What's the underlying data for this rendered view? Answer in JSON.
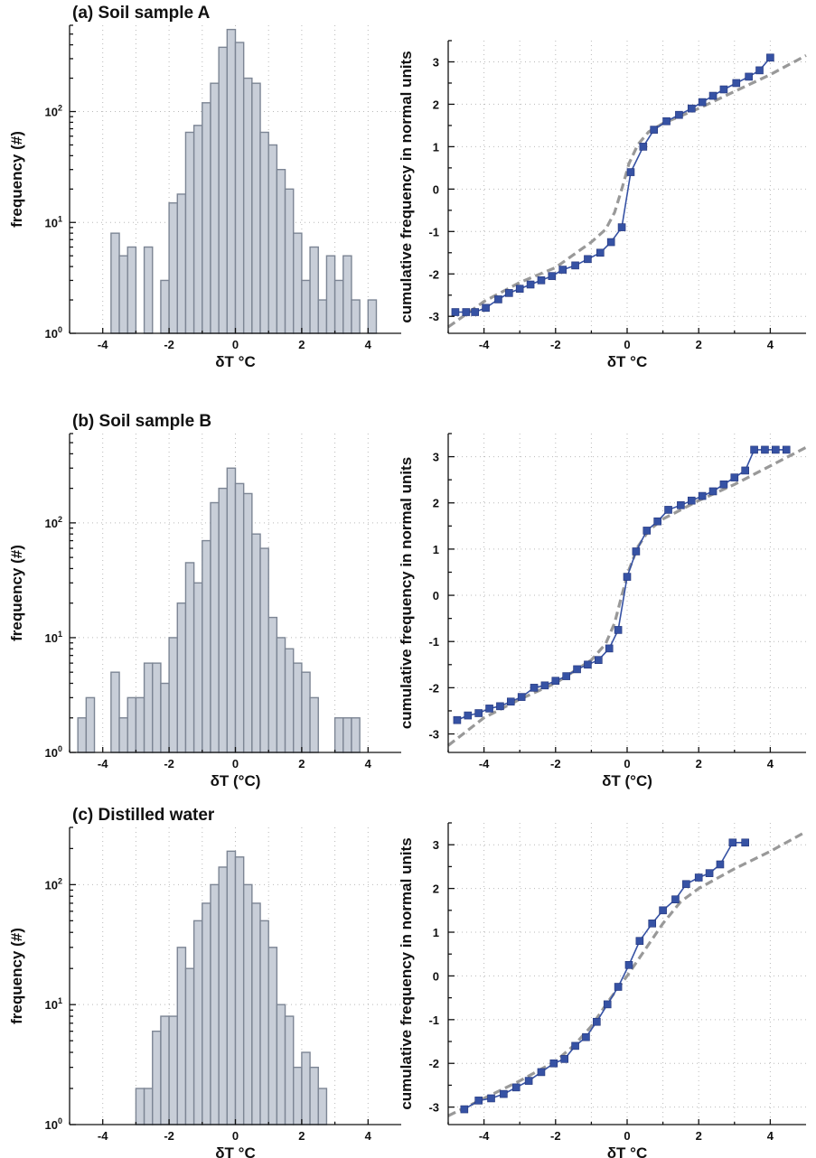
{
  "chart_data": [
    {
      "type": "bar",
      "title": "(a) Soil sample A",
      "xlabel": "δT °C",
      "ylabel": "frequency (#)",
      "yscale": "log",
      "xlim": [
        -5,
        5
      ],
      "ylim": [
        1,
        600
      ],
      "xticks": [
        "-4",
        "-2",
        "0",
        "2",
        "4"
      ],
      "yticks": [
        {
          "base": "10",
          "exp": "0"
        },
        {
          "base": "10",
          "exp": "1"
        },
        {
          "base": "10",
          "exp": "2"
        }
      ],
      "grid": true,
      "bins": [
        [
          -3.75,
          -3.5
        ],
        [
          -3.5,
          -3.25
        ],
        [
          -3.25,
          -3.0
        ],
        [
          -3.0,
          -2.75
        ],
        [
          -2.75,
          -2.5
        ],
        [
          -2.5,
          -2.25
        ],
        [
          -2.25,
          -2.0
        ],
        [
          -2.0,
          -1.75
        ],
        [
          -1.75,
          -1.5
        ],
        [
          -1.5,
          -1.25
        ],
        [
          -1.25,
          -1.0
        ],
        [
          -1.0,
          -0.75
        ],
        [
          -0.75,
          -0.5
        ],
        [
          -0.5,
          -0.25
        ],
        [
          -0.25,
          0.0
        ],
        [
          0.0,
          0.25
        ],
        [
          0.25,
          0.5
        ],
        [
          0.5,
          0.75
        ],
        [
          0.75,
          1.0
        ],
        [
          1.0,
          1.25
        ],
        [
          1.25,
          1.5
        ],
        [
          1.5,
          1.75
        ],
        [
          1.75,
          2.0
        ],
        [
          2.0,
          2.25
        ],
        [
          2.25,
          2.5
        ],
        [
          2.5,
          2.75
        ],
        [
          2.75,
          3.0
        ],
        [
          3.0,
          3.25
        ],
        [
          3.25,
          3.5
        ],
        [
          3.5,
          3.75
        ],
        [
          4.0,
          4.25
        ]
      ],
      "values": [
        8,
        5,
        6,
        0,
        6,
        0,
        3,
        15,
        18,
        65,
        75,
        120,
        180,
        380,
        550,
        420,
        200,
        180,
        65,
        50,
        30,
        20,
        8,
        3,
        6,
        2,
        5,
        3,
        5,
        2,
        2
      ]
    },
    {
      "type": "line",
      "xlabel": "δT °C",
      "ylabel": "cumulative frequency in normal units",
      "xlim": [
        -5,
        5
      ],
      "ylim": [
        -3.4,
        3.5
      ],
      "xticks": [
        "-4",
        "-2",
        "0",
        "2",
        "4"
      ],
      "yticks": [
        "-3",
        "-2",
        "-1",
        "0",
        "1",
        "2",
        "3"
      ],
      "grid": true,
      "x": [
        -4.8,
        -4.5,
        -4.25,
        -3.95,
        -3.6,
        -3.3,
        -3.0,
        -2.7,
        -2.4,
        -2.1,
        -1.8,
        -1.45,
        -1.1,
        -0.75,
        -0.45,
        -0.15,
        0.1,
        0.45,
        0.75,
        1.1,
        1.45,
        1.8,
        2.1,
        2.4,
        2.7,
        3.05,
        3.4,
        3.7,
        4.0
      ],
      "y": [
        -2.9,
        -2.9,
        -2.9,
        -2.8,
        -2.6,
        -2.45,
        -2.35,
        -2.25,
        -2.15,
        -2.05,
        -1.9,
        -1.8,
        -1.65,
        -1.5,
        -1.25,
        -0.9,
        0.4,
        1.0,
        1.4,
        1.6,
        1.75,
        1.9,
        2.05,
        2.2,
        2.35,
        2.5,
        2.65,
        2.8,
        3.1
      ],
      "fit": [
        [
          -5,
          -3.25
        ],
        [
          -4,
          -2.65
        ],
        [
          -3,
          -2.2
        ],
        [
          -2,
          -1.85
        ],
        [
          -1.5,
          -1.55
        ],
        [
          -1,
          -1.25
        ],
        [
          -0.6,
          -0.95
        ],
        [
          -0.35,
          -0.55
        ],
        [
          -0.15,
          0
        ],
        [
          0.05,
          0.6
        ],
        [
          0.3,
          1.05
        ],
        [
          0.6,
          1.35
        ],
        [
          1,
          1.55
        ],
        [
          2,
          1.9
        ],
        [
          3,
          2.3
        ],
        [
          4,
          2.7
        ],
        [
          5,
          3.15
        ]
      ]
    },
    {
      "type": "bar",
      "title": "(b) Soil sample B",
      "xlabel": "δT (°C)",
      "ylabel": "frequency (#)",
      "yscale": "log",
      "xlim": [
        -5,
        5
      ],
      "ylim": [
        1,
        600
      ],
      "xticks": [
        "-4",
        "-2",
        "0",
        "2",
        "4"
      ],
      "yticks": [
        {
          "base": "10",
          "exp": "0"
        },
        {
          "base": "10",
          "exp": "1"
        },
        {
          "base": "10",
          "exp": "2"
        }
      ],
      "grid": true,
      "bins": [
        [
          -4.75,
          -4.5
        ],
        [
          -4.5,
          -4.25
        ],
        [
          -4.25,
          -4.0
        ],
        [
          -4.0,
          -3.75
        ],
        [
          -3.75,
          -3.5
        ],
        [
          -3.5,
          -3.25
        ],
        [
          -3.25,
          -3.0
        ],
        [
          -3.0,
          -2.75
        ],
        [
          -2.75,
          -2.5
        ],
        [
          -2.5,
          -2.25
        ],
        [
          -2.25,
          -2.0
        ],
        [
          -2.0,
          -1.75
        ],
        [
          -1.75,
          -1.5
        ],
        [
          -1.5,
          -1.25
        ],
        [
          -1.25,
          -1.0
        ],
        [
          -1.0,
          -0.75
        ],
        [
          -0.75,
          -0.5
        ],
        [
          -0.5,
          -0.25
        ],
        [
          -0.25,
          0.0
        ],
        [
          0.0,
          0.25
        ],
        [
          0.25,
          0.5
        ],
        [
          0.5,
          0.75
        ],
        [
          0.75,
          1.0
        ],
        [
          1.0,
          1.25
        ],
        [
          1.25,
          1.5
        ],
        [
          1.5,
          1.75
        ],
        [
          1.75,
          2.0
        ],
        [
          2.0,
          2.25
        ],
        [
          2.25,
          2.5
        ],
        [
          2.5,
          2.75
        ],
        [
          2.75,
          3.0
        ],
        [
          3.0,
          3.25
        ],
        [
          3.25,
          3.5
        ],
        [
          3.5,
          3.75
        ]
      ],
      "values": [
        2,
        3,
        0,
        0,
        5,
        2,
        3,
        3,
        6,
        6,
        4,
        10,
        20,
        45,
        30,
        70,
        150,
        200,
        300,
        220,
        180,
        80,
        60,
        15,
        10,
        8,
        6,
        5,
        3,
        0,
        0,
        2,
        2,
        2
      ]
    },
    {
      "type": "line",
      "xlabel": "δT (°C)",
      "ylabel": "cumulative frequency in normal units",
      "xlim": [
        -5,
        5
      ],
      "ylim": [
        -3.4,
        3.5
      ],
      "xticks": [
        "-4",
        "-2",
        "0",
        "2",
        "4"
      ],
      "yticks": [
        "-3",
        "-2",
        "-1",
        "0",
        "1",
        "2",
        "3"
      ],
      "grid": true,
      "x": [
        -4.75,
        -4.45,
        -4.15,
        -3.85,
        -3.55,
        -3.25,
        -2.95,
        -2.6,
        -2.3,
        -2.0,
        -1.7,
        -1.4,
        -1.1,
        -0.8,
        -0.5,
        -0.25,
        0,
        0.25,
        0.55,
        0.85,
        1.15,
        1.5,
        1.8,
        2.1,
        2.4,
        2.7,
        3.0,
        3.3,
        3.55,
        3.85,
        4.15,
        4.45
      ],
      "y": [
        -2.7,
        -2.6,
        -2.55,
        -2.45,
        -2.4,
        -2.3,
        -2.2,
        -2.0,
        -1.95,
        -1.85,
        -1.75,
        -1.6,
        -1.5,
        -1.4,
        -1.15,
        -0.75,
        0.4,
        0.95,
        1.4,
        1.6,
        1.85,
        1.95,
        2.05,
        2.15,
        2.25,
        2.4,
        2.55,
        2.7,
        3.15,
        3.15,
        3.15,
        3.15
      ],
      "fit": [
        [
          -5,
          -3.25
        ],
        [
          -4,
          -2.65
        ],
        [
          -3,
          -2.25
        ],
        [
          -2,
          -1.9
        ],
        [
          -1.5,
          -1.65
        ],
        [
          -1,
          -1.4
        ],
        [
          -0.6,
          -1.05
        ],
        [
          -0.35,
          -0.6
        ],
        [
          -0.15,
          0
        ],
        [
          0.05,
          0.55
        ],
        [
          0.3,
          1.05
        ],
        [
          0.6,
          1.4
        ],
        [
          1,
          1.65
        ],
        [
          2,
          2.05
        ],
        [
          3,
          2.4
        ],
        [
          4,
          2.8
        ],
        [
          5,
          3.2
        ]
      ]
    },
    {
      "type": "bar",
      "title": "(c) Distilled water",
      "xlabel": "δT °C",
      "ylabel": "frequency (#)",
      "yscale": "log",
      "xlim": [
        -5,
        5
      ],
      "ylim": [
        1,
        300
      ],
      "xticks": [
        "-4",
        "-2",
        "0",
        "2",
        "4"
      ],
      "yticks": [
        {
          "base": "10",
          "exp": "0"
        },
        {
          "base": "10",
          "exp": "1"
        },
        {
          "base": "10",
          "exp": "2"
        }
      ],
      "grid": true,
      "bins": [
        [
          -3.0,
          -2.75
        ],
        [
          -2.75,
          -2.5
        ],
        [
          -2.5,
          -2.25
        ],
        [
          -2.25,
          -2.0
        ],
        [
          -2.0,
          -1.75
        ],
        [
          -1.75,
          -1.5
        ],
        [
          -1.5,
          -1.25
        ],
        [
          -1.25,
          -1.0
        ],
        [
          -1.0,
          -0.75
        ],
        [
          -0.75,
          -0.5
        ],
        [
          -0.5,
          -0.25
        ],
        [
          -0.25,
          0.0
        ],
        [
          0.0,
          0.25
        ],
        [
          0.25,
          0.5
        ],
        [
          0.5,
          0.75
        ],
        [
          0.75,
          1.0
        ],
        [
          1.0,
          1.25
        ],
        [
          1.25,
          1.5
        ],
        [
          1.5,
          1.75
        ],
        [
          1.75,
          2.0
        ],
        [
          2.0,
          2.25
        ],
        [
          2.25,
          2.5
        ],
        [
          2.5,
          2.75
        ]
      ],
      "values": [
        2,
        2,
        6,
        8,
        8,
        30,
        20,
        50,
        70,
        100,
        140,
        190,
        170,
        100,
        70,
        50,
        30,
        10,
        8,
        3,
        4,
        3,
        2
      ]
    },
    {
      "type": "line",
      "xlabel": "δT °C",
      "ylabel": "cumulative frequency in normal units",
      "xlim": [
        -5,
        5
      ],
      "ylim": [
        -3.4,
        3.5
      ],
      "xticks": [
        "-4",
        "-2",
        "0",
        "2",
        "4"
      ],
      "yticks": [
        "-3",
        "-2",
        "-1",
        "0",
        "1",
        "2",
        "3"
      ],
      "grid": true,
      "x": [
        -4.55,
        -4.15,
        -3.8,
        -3.45,
        -3.1,
        -2.75,
        -2.4,
        -2.05,
        -1.75,
        -1.45,
        -1.15,
        -0.85,
        -0.55,
        -0.25,
        0.05,
        0.35,
        0.7,
        1.0,
        1.35,
        1.65,
        2.0,
        2.3,
        2.6,
        2.95,
        3.3
      ],
      "y": [
        -3.05,
        -2.85,
        -2.8,
        -2.7,
        -2.55,
        -2.4,
        -2.2,
        -2.0,
        -1.9,
        -1.6,
        -1.4,
        -1.05,
        -0.65,
        -0.25,
        0.25,
        0.8,
        1.2,
        1.5,
        1.75,
        2.1,
        2.25,
        2.35,
        2.55,
        3.05,
        3.05
      ],
      "fit": [
        [
          -5,
          -3.2
        ],
        [
          -4,
          -2.8
        ],
        [
          -3,
          -2.4
        ],
        [
          -2,
          -1.95
        ],
        [
          -1.5,
          -1.6
        ],
        [
          -1,
          -1.15
        ],
        [
          -0.5,
          -0.55
        ],
        [
          0,
          0
        ],
        [
          0.5,
          0.6
        ],
        [
          1,
          1.2
        ],
        [
          1.5,
          1.7
        ],
        [
          2,
          2.0
        ],
        [
          3,
          2.45
        ],
        [
          4,
          2.85
        ],
        [
          5,
          3.3
        ]
      ]
    }
  ]
}
